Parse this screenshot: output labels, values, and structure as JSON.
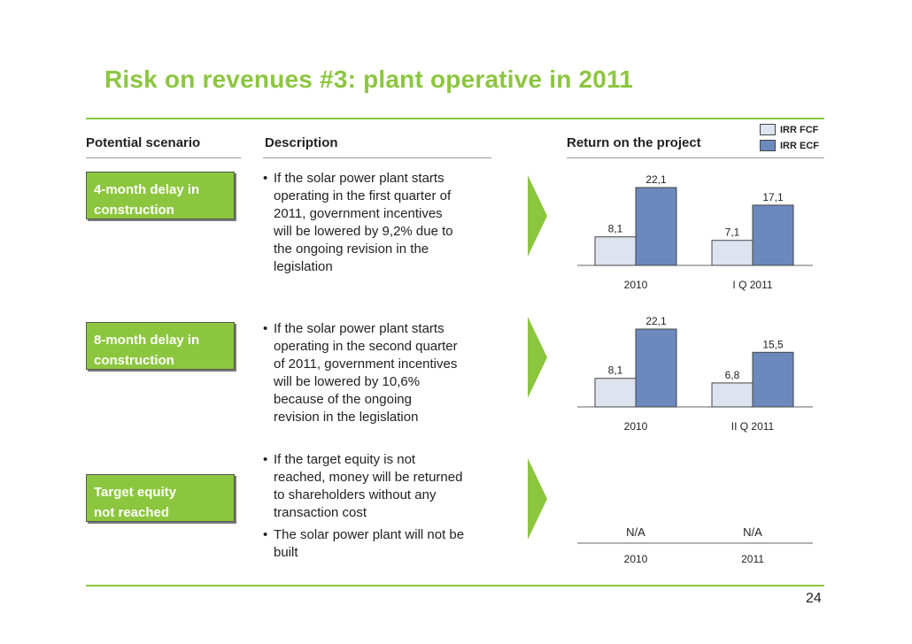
{
  "title": "Risk on revenues #3: plant operative in 2011",
  "headers": {
    "scenario": "Potential scenario",
    "description": "Description",
    "return": "Return on the project"
  },
  "legend": {
    "fcf": "IRR FCF",
    "ecf": "IRR ECF"
  },
  "colors": {
    "accent": "#8cc63f",
    "fcf_fill": "#dde3ef",
    "ecf_fill": "#6b89bd"
  },
  "rows": [
    {
      "scenario": [
        "4-month delay in",
        "construction"
      ],
      "bullets": [
        [
          "If the solar power plant starts",
          "operating in the first quarter of",
          "2011, government incentives",
          "will be lowered by 9,2% due to",
          "the ongoing revision in the",
          "legislation"
        ]
      ]
    },
    {
      "scenario": [
        "8-month delay in",
        "construction"
      ],
      "bullets": [
        [
          "If the solar power plant starts",
          "operating in the second quarter",
          "of 2011, government incentives",
          "will be lowered by 10,6%",
          "because of the ongoing",
          "revision in the legislation"
        ]
      ]
    },
    {
      "scenario": [
        "Target equity",
        "not reached"
      ],
      "bullets": [
        [
          "If the target equity is not",
          "reached, money will be returned",
          "to shareholders without any",
          "transaction cost"
        ],
        [
          "The solar power plant will not be",
          "built"
        ]
      ]
    }
  ],
  "chart_data": [
    {
      "type": "bar",
      "categories": [
        "2010",
        "I Q 2011"
      ],
      "series": [
        {
          "name": "IRR FCF",
          "values": [
            8.1,
            7.1
          ],
          "labels": [
            "8,1",
            "7,1"
          ]
        },
        {
          "name": "IRR ECF",
          "values": [
            22.1,
            17.1
          ],
          "labels": [
            "22,1",
            "17,1"
          ]
        }
      ],
      "ylim": [
        0,
        22.1
      ]
    },
    {
      "type": "bar",
      "categories": [
        "2010",
        "II Q 2011"
      ],
      "series": [
        {
          "name": "IRR FCF",
          "values": [
            8.1,
            6.8
          ],
          "labels": [
            "8,1",
            "6,8"
          ]
        },
        {
          "name": "IRR ECF",
          "values": [
            22.1,
            15.5
          ],
          "labels": [
            "22,1",
            "15,5"
          ]
        }
      ],
      "ylim": [
        0,
        22.1
      ]
    },
    {
      "type": "table",
      "categories": [
        "2010",
        "2011"
      ],
      "values": [
        "N/A",
        "N/A"
      ]
    }
  ],
  "page_number": "24"
}
